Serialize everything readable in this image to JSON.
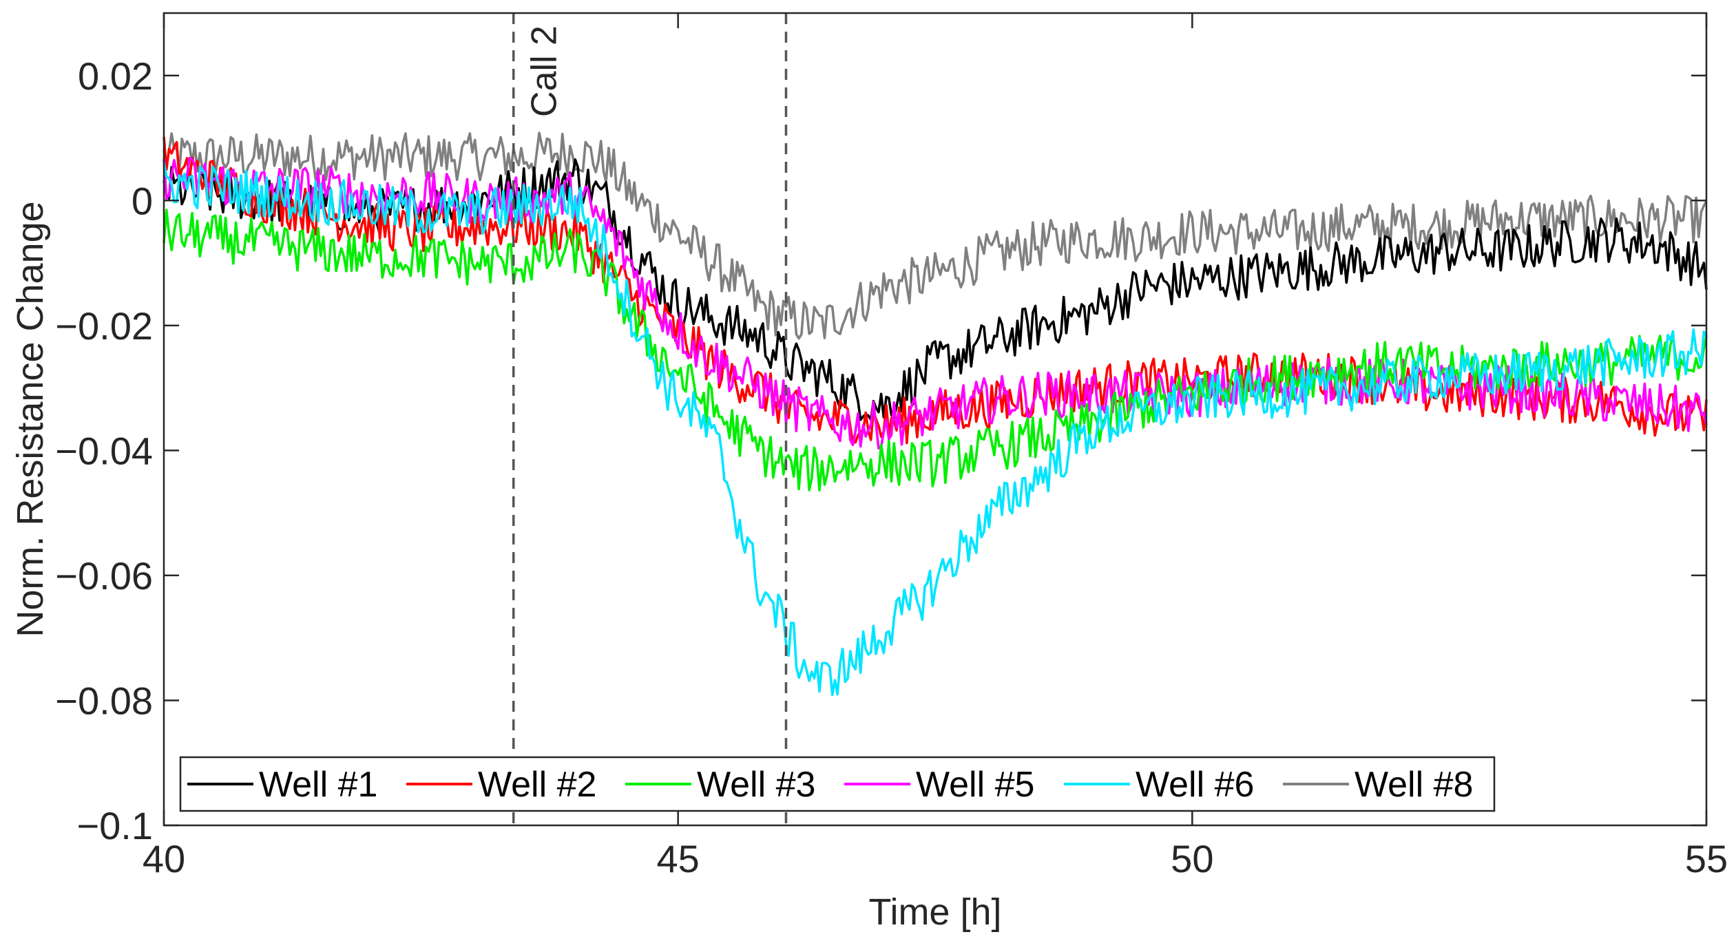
{
  "chart_data": {
    "type": "line",
    "title": "",
    "xlabel": "Time [h]",
    "ylabel": "Norm. Resistance Change",
    "xlim": [
      40,
      55
    ],
    "ylim": [
      -0.1,
      0.03
    ],
    "xticks": [
      40,
      45,
      50,
      55
    ],
    "xtick_labels": [
      "40",
      "45",
      "50",
      "55"
    ],
    "yticks": [
      0.02,
      0,
      -0.02,
      -0.04,
      -0.06,
      -0.08,
      -0.1
    ],
    "ytick_labels": [
      "0.02",
      "0",
      "−0.02",
      "−0.04",
      "−0.06",
      "−0.08",
      "−0.1"
    ],
    "grid": false,
    "legend_position": "bottom",
    "annotations": [
      {
        "x": 43.4,
        "label": "Call 2",
        "style": "dashed"
      },
      {
        "x": 46.05,
        "label": "",
        "style": "dashed"
      }
    ],
    "series": [
      {
        "name": "Well #1",
        "color": "#000000",
        "x": [
          40,
          40.5,
          41,
          41.5,
          42,
          42.5,
          43,
          43.5,
          44,
          44.3,
          44.6,
          44.9,
          45.2,
          45.5,
          45.8,
          46.1,
          46.4,
          46.7,
          47,
          47.5,
          48,
          48.5,
          49,
          49.5,
          50,
          50.5,
          51,
          51.5,
          52,
          52.5,
          53,
          53.5,
          54,
          54.5,
          55
        ],
        "values": [
          0.002,
          0.001,
          0.0,
          -0.001,
          -0.002,
          -0.001,
          0.0,
          0.002,
          0.004,
          0.0,
          -0.008,
          -0.015,
          -0.018,
          -0.02,
          -0.022,
          -0.026,
          -0.028,
          -0.031,
          -0.033,
          -0.026,
          -0.023,
          -0.02,
          -0.018,
          -0.014,
          -0.013,
          -0.012,
          -0.011,
          -0.01,
          -0.009,
          -0.008,
          -0.008,
          -0.007,
          -0.006,
          -0.007,
          -0.011
        ]
      },
      {
        "name": "Well #2",
        "color": "#ff0000",
        "x": [
          40,
          40.5,
          41,
          41.5,
          42,
          42.5,
          43,
          43.5,
          44,
          44.3,
          44.6,
          44.9,
          45.2,
          45.5,
          45.8,
          46.1,
          46.4,
          46.7,
          47,
          47.5,
          48,
          48.5,
          49,
          49.5,
          50,
          50.5,
          51,
          51.5,
          52,
          52.5,
          53,
          53.5,
          54,
          54.5,
          55
        ],
        "values": [
          0.007,
          0.003,
          0.0,
          -0.002,
          -0.004,
          -0.005,
          -0.004,
          -0.004,
          -0.005,
          -0.01,
          -0.016,
          -0.02,
          -0.024,
          -0.028,
          -0.03,
          -0.034,
          -0.035,
          -0.035,
          -0.036,
          -0.034,
          -0.033,
          -0.031,
          -0.03,
          -0.029,
          -0.029,
          -0.028,
          -0.028,
          -0.028,
          -0.03,
          -0.031,
          -0.031,
          -0.032,
          -0.032,
          -0.034,
          -0.035
        ]
      },
      {
        "name": "Well #3",
        "color": "#00ee00",
        "x": [
          40,
          40.5,
          41,
          41.5,
          42,
          42.5,
          43,
          43.5,
          44,
          44.3,
          44.6,
          44.9,
          45.2,
          45.5,
          45.8,
          46.1,
          46.4,
          46.7,
          47,
          47.5,
          48,
          48.5,
          49,
          49.5,
          50,
          50.5,
          51,
          51.5,
          52,
          52.5,
          53,
          53.5,
          54,
          54.5,
          55
        ],
        "values": [
          -0.005,
          -0.006,
          -0.007,
          -0.008,
          -0.009,
          -0.009,
          -0.01,
          -0.01,
          -0.008,
          -0.012,
          -0.02,
          -0.026,
          -0.031,
          -0.036,
          -0.04,
          -0.043,
          -0.043,
          -0.042,
          -0.042,
          -0.042,
          -0.04,
          -0.038,
          -0.036,
          -0.033,
          -0.031,
          -0.029,
          -0.028,
          -0.027,
          -0.026,
          -0.027,
          -0.027,
          -0.026,
          -0.026,
          -0.025,
          -0.025
        ]
      },
      {
        "name": "Well #5",
        "color": "#ff00ff",
        "x": [
          40,
          40.5,
          41,
          41.5,
          42,
          42.5,
          43,
          43.5,
          44,
          44.3,
          44.6,
          44.9,
          45.2,
          45.5,
          45.8,
          46.1,
          46.4,
          46.7,
          47,
          47.5,
          48,
          48.5,
          49,
          49.5,
          50,
          50.5,
          51,
          51.5,
          52,
          52.5,
          53,
          53.5,
          54,
          54.5,
          55
        ],
        "values": [
          0.004,
          0.003,
          0.002,
          0.002,
          0.001,
          0.001,
          0.0,
          0.0,
          0.001,
          -0.004,
          -0.012,
          -0.019,
          -0.024,
          -0.027,
          -0.03,
          -0.033,
          -0.035,
          -0.036,
          -0.036,
          -0.034,
          -0.032,
          -0.031,
          -0.031,
          -0.031,
          -0.031,
          -0.03,
          -0.029,
          -0.029,
          -0.029,
          -0.03,
          -0.03,
          -0.031,
          -0.032,
          -0.033,
          -0.034
        ]
      },
      {
        "name": "Well #6",
        "color": "#00e5ff",
        "x": [
          40,
          40.5,
          41,
          41.5,
          42,
          42.5,
          43,
          43.5,
          44,
          44.3,
          44.6,
          44.9,
          45.2,
          45.4,
          45.6,
          45.8,
          46.0,
          46.2,
          46.4,
          46.7,
          47.0,
          47.4,
          47.8,
          48.2,
          48.6,
          49,
          49.5,
          50,
          50.5,
          51,
          51.5,
          52,
          52.5,
          53,
          53.5,
          54,
          54.5,
          55
        ],
        "values": [
          0.003,
          0.002,
          0.001,
          0.0,
          -0.001,
          -0.002,
          -0.002,
          -0.001,
          0.0,
          -0.008,
          -0.02,
          -0.03,
          -0.035,
          -0.04,
          -0.052,
          -0.062,
          -0.067,
          -0.074,
          -0.077,
          -0.074,
          -0.069,
          -0.063,
          -0.055,
          -0.048,
          -0.043,
          -0.037,
          -0.034,
          -0.032,
          -0.031,
          -0.031,
          -0.03,
          -0.029,
          -0.028,
          -0.028,
          -0.027,
          -0.026,
          -0.025,
          -0.024
        ]
      },
      {
        "name": "Well #8",
        "color": "#808080",
        "x": [
          40,
          40.5,
          41,
          41.5,
          42,
          42.5,
          43,
          43.5,
          44,
          44.3,
          44.6,
          44.9,
          45.2,
          45.5,
          45.8,
          46.1,
          46.4,
          46.7,
          47,
          47.5,
          48,
          48.5,
          49,
          49.5,
          50,
          50.5,
          51,
          51.5,
          52,
          52.5,
          53,
          53.5,
          54,
          54.5,
          55
        ],
        "values": [
          0.007,
          0.007,
          0.007,
          0.007,
          0.007,
          0.007,
          0.007,
          0.007,
          0.008,
          0.006,
          0.0,
          -0.004,
          -0.008,
          -0.012,
          -0.017,
          -0.019,
          -0.02,
          -0.017,
          -0.014,
          -0.012,
          -0.009,
          -0.007,
          -0.006,
          -0.006,
          -0.005,
          -0.005,
          -0.005,
          -0.004,
          -0.004,
          -0.004,
          -0.003,
          -0.003,
          -0.003,
          -0.003,
          -0.003
        ]
      }
    ]
  }
}
